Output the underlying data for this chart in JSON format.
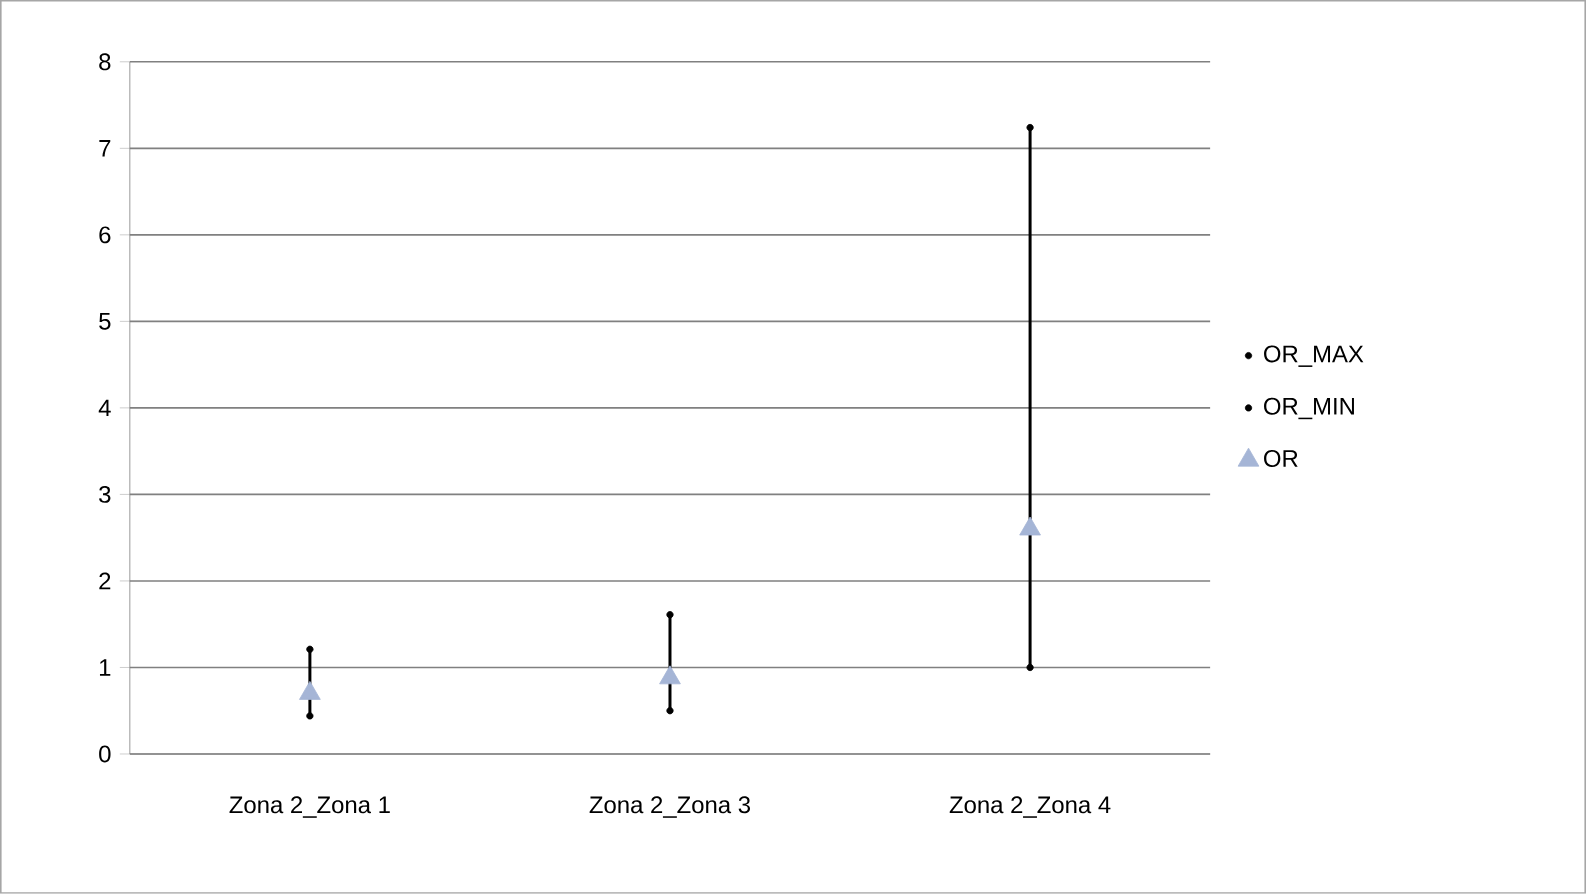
{
  "chart_data": {
    "type": "scatter",
    "categories": [
      "Zona 2_Zona 1",
      "Zona 2_Zona 3",
      "Zona 2_Zona 4"
    ],
    "series": [
      {
        "name": "OR_MAX",
        "color": "#000000",
        "marker": "circle",
        "values": [
          1.21,
          1.61,
          7.24
        ]
      },
      {
        "name": "OR_MIN",
        "color": "#000000",
        "marker": "circle",
        "values": [
          0.44,
          0.5,
          1.0
        ]
      },
      {
        "name": "OR",
        "color": "#a5b5d6",
        "marker": "triangle",
        "values": [
          0.7,
          0.88,
          2.6
        ]
      }
    ],
    "ylim": [
      0,
      8
    ],
    "yticks": [
      0,
      1,
      2,
      3,
      4,
      5,
      6,
      7,
      8
    ],
    "grid": "y",
    "legend": "right"
  }
}
